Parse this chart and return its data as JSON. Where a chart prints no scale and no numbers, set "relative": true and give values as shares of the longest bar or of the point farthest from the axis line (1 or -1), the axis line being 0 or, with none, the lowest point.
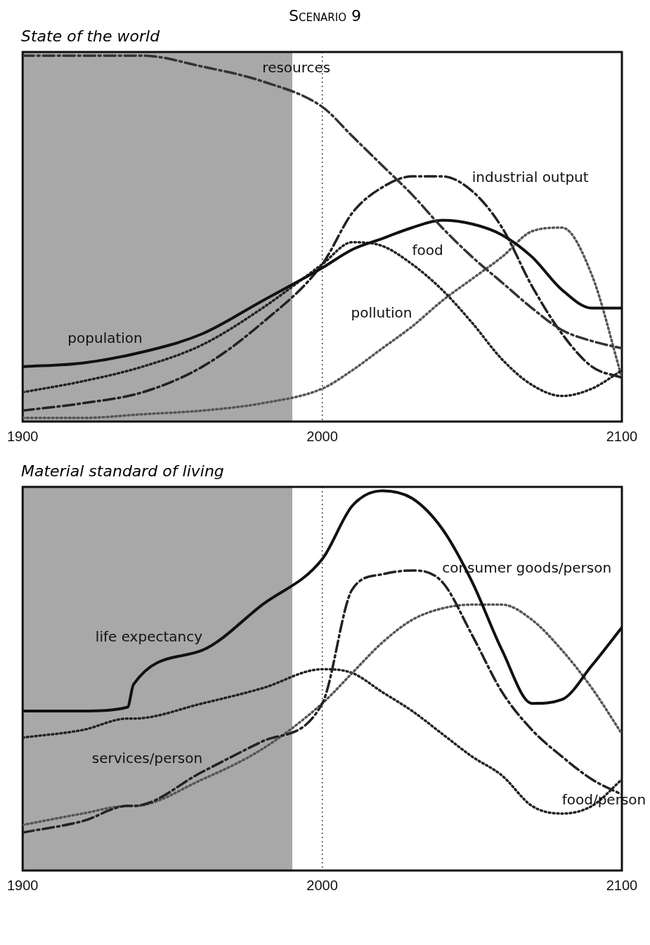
{
  "chart_data": [
    {
      "type": "line",
      "title": "Scenario 9",
      "subtitle": "State of the world",
      "relative": true,
      "xlim": [
        1900,
        2100
      ],
      "xticks": [
        1900,
        2000,
        2100
      ],
      "grid": false,
      "legend": false,
      "x": [
        1900,
        1920,
        1940,
        1960,
        1980,
        2000,
        2010,
        2020,
        2030,
        2040,
        2050,
        2060,
        2070,
        2080,
        2090,
        2100
      ],
      "series": [
        {
          "color": "#333333",
          "line_style": "dashed",
          "values": [
            1.0,
            1.0,
            1.0,
            0.97,
            0.93,
            0.86,
            0.78,
            0.7,
            0.62,
            0.53,
            0.45,
            0.38,
            0.31,
            0.25,
            0.22,
            0.2
          ]
        },
        {
          "color": "#111111",
          "line_style": "solid",
          "values": [
            0.15,
            0.16,
            0.19,
            0.24,
            0.33,
            0.42,
            0.47,
            0.5,
            0.53,
            0.55,
            0.54,
            0.51,
            0.45,
            0.36,
            0.31,
            0.31
          ]
        },
        {
          "color": "#222222",
          "line_style": "dashed",
          "values": [
            0.03,
            0.05,
            0.08,
            0.15,
            0.27,
            0.43,
            0.57,
            0.64,
            0.67,
            0.67,
            0.63,
            0.53,
            0.37,
            0.24,
            0.15,
            0.12
          ]
        },
        {
          "color": "#222222",
          "line_style": "dotted",
          "values": [
            0.08,
            0.11,
            0.15,
            0.21,
            0.31,
            0.43,
            0.49,
            0.48,
            0.43,
            0.36,
            0.27,
            0.17,
            0.1,
            0.07,
            0.09,
            0.14
          ]
        },
        {
          "color": "#555555",
          "line_style": "dotted",
          "values": [
            0.01,
            0.01,
            0.02,
            0.03,
            0.05,
            0.09,
            0.14,
            0.2,
            0.26,
            0.33,
            0.39,
            0.45,
            0.52,
            0.53,
            0.4,
            0.12
          ]
        }
      ],
      "bands": [
        {
          "axis": "x",
          "from": 1900,
          "to": 1990,
          "color": "#a8a8a8"
        }
      ],
      "ref_lines": [
        {
          "axis": "x",
          "value": 2000,
          "color": "#444444",
          "line_style": "dotted"
        }
      ],
      "annotations": [
        {
          "text": "resources",
          "x": 1980,
          "y": 0.93
        },
        {
          "text": "population",
          "x": 1940,
          "y": 0.19
        },
        {
          "text": "industrial output",
          "x": 2050,
          "y": 0.63
        },
        {
          "text": "food",
          "x": 2030,
          "y": 0.43
        },
        {
          "text": "pollution",
          "x": 2030,
          "y": 0.26
        }
      ]
    },
    {
      "type": "line",
      "title": "Material standard of living",
      "relative": true,
      "xlim": [
        1900,
        2100
      ],
      "xticks": [
        1900,
        2000,
        2100
      ],
      "grid": false,
      "legend": false,
      "x": [
        1900,
        1920,
        1935,
        1937,
        1960,
        1980,
        2000,
        2010,
        2020,
        2030,
        2040,
        2050,
        2060,
        2070,
        2080,
        2090,
        2100
      ],
      "series": [
        {
          "color": "#111111",
          "line_style": "solid",
          "values": [
            0.42,
            0.42,
            0.43,
            0.49,
            0.58,
            0.7,
            0.82,
            0.96,
            1.0,
            0.98,
            0.9,
            0.76,
            0.58,
            0.44,
            0.45,
            0.54,
            0.64
          ]
        },
        {
          "color": "#222222",
          "line_style": "dashed",
          "values": [
            0.1,
            0.13,
            0.17,
            0.17,
            0.26,
            0.34,
            0.44,
            0.74,
            0.78,
            0.79,
            0.76,
            0.62,
            0.47,
            0.37,
            0.3,
            0.24,
            0.2
          ]
        },
        {
          "color": "#555555",
          "line_style": "dotted",
          "values": [
            0.12,
            0.15,
            0.17,
            0.17,
            0.24,
            0.32,
            0.44,
            0.52,
            0.6,
            0.66,
            0.69,
            0.7,
            0.7,
            0.66,
            0.58,
            0.48,
            0.36
          ]
        },
        {
          "color": "#222222",
          "line_style": "dotted",
          "values": [
            0.35,
            0.37,
            0.4,
            0.4,
            0.44,
            0.48,
            0.53,
            0.52,
            0.47,
            0.42,
            0.36,
            0.3,
            0.25,
            0.17,
            0.15,
            0.17,
            0.24
          ]
        }
      ],
      "bands": [
        {
          "axis": "x",
          "from": 1900,
          "to": 1990,
          "color": "#a8a8a8"
        }
      ],
      "ref_lines": [
        {
          "axis": "x",
          "value": 2000,
          "color": "#444444",
          "line_style": "dotted"
        }
      ],
      "annotations": [
        {
          "text": "life expectancy",
          "x": 1960,
          "y": 0.58
        },
        {
          "text": "consumer goods/person",
          "x": 2040,
          "y": 0.76
        },
        {
          "text": "services/person",
          "x": 1960,
          "y": 0.26
        },
        {
          "text": "food/person",
          "x": 2080,
          "y": 0.15
        }
      ]
    }
  ]
}
